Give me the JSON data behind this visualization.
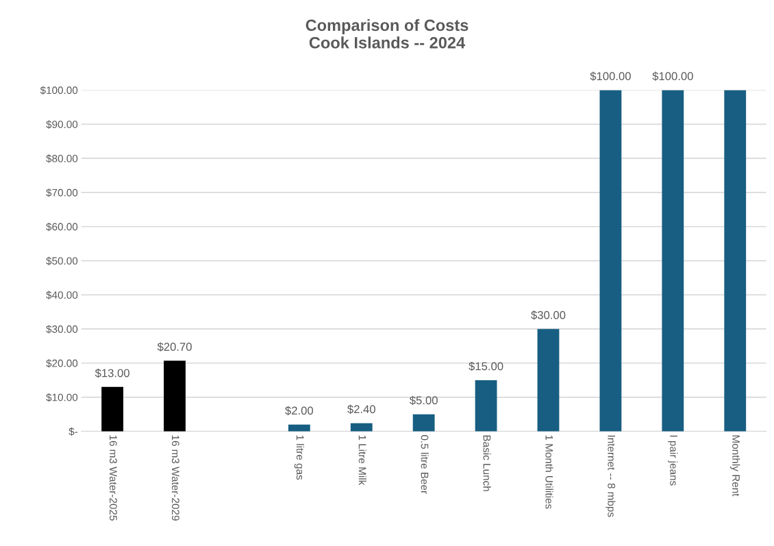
{
  "chart_data": {
    "type": "bar",
    "title": "Comparison of Costs\nCook Islands -- 2024",
    "categories": [
      "16 m3 Water-2025",
      "16 m3 Water-2029",
      null,
      "1 litre gas",
      "1 Litre Milk",
      "0.5 litre Beer",
      "Basic Lunch",
      "1 Month Utilities",
      "Internet -- 8 mbps",
      "I pair jeans",
      "Monthly Rent"
    ],
    "values": [
      13,
      20.7,
      null,
      2,
      2.4,
      5,
      15,
      30,
      100,
      100,
      100
    ],
    "colors": [
      "#000000",
      "#000000",
      "#175e82",
      "#175e82",
      "#175e82",
      "#175e82",
      "#175e82",
      "#175e82",
      "#175e82",
      "#175e82",
      "#175e82"
    ],
    "value_labels": [
      "$13.00",
      "$20.70",
      null,
      "$2.00",
      "$2.40",
      "$5.00",
      "$15.00",
      "$30.00",
      "$100.00",
      "$100.00",
      null
    ],
    "ylim": [
      0,
      100
    ],
    "yticks": [
      {
        "value": 0,
        "label": "$-"
      },
      {
        "value": 10,
        "label": "$10.00"
      },
      {
        "value": 20,
        "label": "$20.00"
      },
      {
        "value": 30,
        "label": "$30.00"
      },
      {
        "value": 40,
        "label": "$40.00"
      },
      {
        "value": 50,
        "label": "$50.00"
      },
      {
        "value": 60,
        "label": "$60.00"
      },
      {
        "value": 70,
        "label": "$70.00"
      },
      {
        "value": 80,
        "label": "$80.00"
      },
      {
        "value": 90,
        "label": "$90.00"
      },
      {
        "value": 100,
        "label": "$100.00"
      }
    ],
    "grid": "y",
    "legend": false
  }
}
